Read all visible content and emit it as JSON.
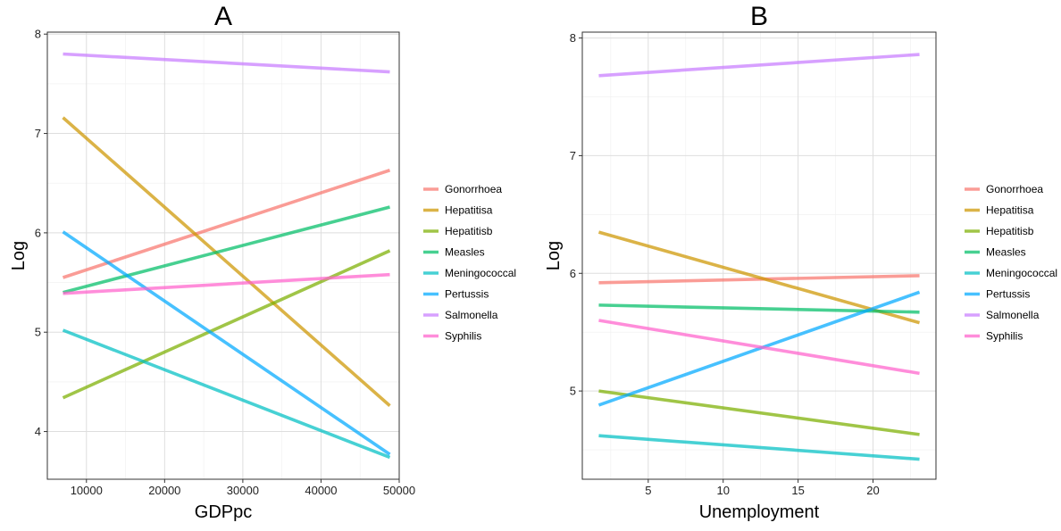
{
  "chart_data": [
    {
      "type": "line",
      "title": "A",
      "xlabel": "GDPpc",
      "ylabel": "Log",
      "xlim": [
        5000,
        50000
      ],
      "ylim": [
        3.52,
        8.02
      ],
      "x_ticks": [
        10000,
        20000,
        30000,
        40000,
        50000
      ],
      "x_tick_labels": [
        "10000",
        "20000",
        "30000",
        "40000",
        "50000"
      ],
      "y_ticks": [
        4,
        5,
        6,
        7,
        8
      ],
      "y_tick_labels": [
        "4",
        "5",
        "6",
        "7",
        "8"
      ],
      "grid": true,
      "legend_position": "right",
      "series": [
        {
          "name": "Gonorrhoea",
          "color": "#F8766D",
          "x": [
            7000,
            48800
          ],
          "y": [
            5.55,
            6.63
          ]
        },
        {
          "name": "Hepatitisa",
          "color": "#CD9600",
          "x": [
            7000,
            48800
          ],
          "y": [
            7.16,
            4.26
          ]
        },
        {
          "name": "Hepatitisb",
          "color": "#7CAE00",
          "x": [
            7000,
            48800
          ],
          "y": [
            4.34,
            5.82
          ]
        },
        {
          "name": "Measles",
          "color": "#00BE67",
          "x": [
            7000,
            48800
          ],
          "y": [
            5.4,
            6.26
          ]
        },
        {
          "name": "Meningococcal",
          "color": "#00BFC4",
          "x": [
            7000,
            48800
          ],
          "y": [
            5.02,
            3.74
          ]
        },
        {
          "name": "Pertussis",
          "color": "#00A9FF",
          "x": [
            7000,
            48800
          ],
          "y": [
            6.01,
            3.77
          ]
        },
        {
          "name": "Salmonella",
          "color": "#C77CFF",
          "x": [
            7000,
            48800
          ],
          "y": [
            7.8,
            7.62
          ]
        },
        {
          "name": "Syphilis",
          "color": "#FF61CC",
          "x": [
            7000,
            48800
          ],
          "y": [
            5.39,
            5.58
          ]
        }
      ]
    },
    {
      "type": "line",
      "title": "B",
      "xlabel": "Unemployment",
      "ylabel": "Log",
      "xlim": [
        0.6,
        24.2
      ],
      "ylim": [
        4.25,
        8.05
      ],
      "x_ticks": [
        5,
        10,
        15,
        20
      ],
      "x_tick_labels": [
        "5",
        "10",
        "15",
        "20"
      ],
      "y_ticks": [
        5,
        6,
        7,
        8
      ],
      "y_tick_labels": [
        "5",
        "6",
        "7",
        "8"
      ],
      "grid": true,
      "legend_position": "right",
      "series": [
        {
          "name": "Gonorrhoea",
          "color": "#F8766D",
          "x": [
            1.7,
            23.1
          ],
          "y": [
            5.92,
            5.98
          ]
        },
        {
          "name": "Hepatitisa",
          "color": "#CD9600",
          "x": [
            1.7,
            23.1
          ],
          "y": [
            6.35,
            5.58
          ]
        },
        {
          "name": "Hepatitisb",
          "color": "#7CAE00",
          "x": [
            1.7,
            23.1
          ],
          "y": [
            5.0,
            4.63
          ]
        },
        {
          "name": "Measles",
          "color": "#00BE67",
          "x": [
            1.7,
            23.1
          ],
          "y": [
            5.73,
            5.67
          ]
        },
        {
          "name": "Meningococcal",
          "color": "#00BFC4",
          "x": [
            1.7,
            23.1
          ],
          "y": [
            4.62,
            4.42
          ]
        },
        {
          "name": "Pertussis",
          "color": "#00A9FF",
          "x": [
            1.7,
            23.1
          ],
          "y": [
            4.88,
            5.84
          ]
        },
        {
          "name": "Salmonella",
          "color": "#C77CFF",
          "x": [
            1.7,
            23.1
          ],
          "y": [
            7.68,
            7.86
          ]
        },
        {
          "name": "Syphilis",
          "color": "#FF61CC",
          "x": [
            1.7,
            23.1
          ],
          "y": [
            5.6,
            5.15
          ]
        }
      ]
    }
  ]
}
